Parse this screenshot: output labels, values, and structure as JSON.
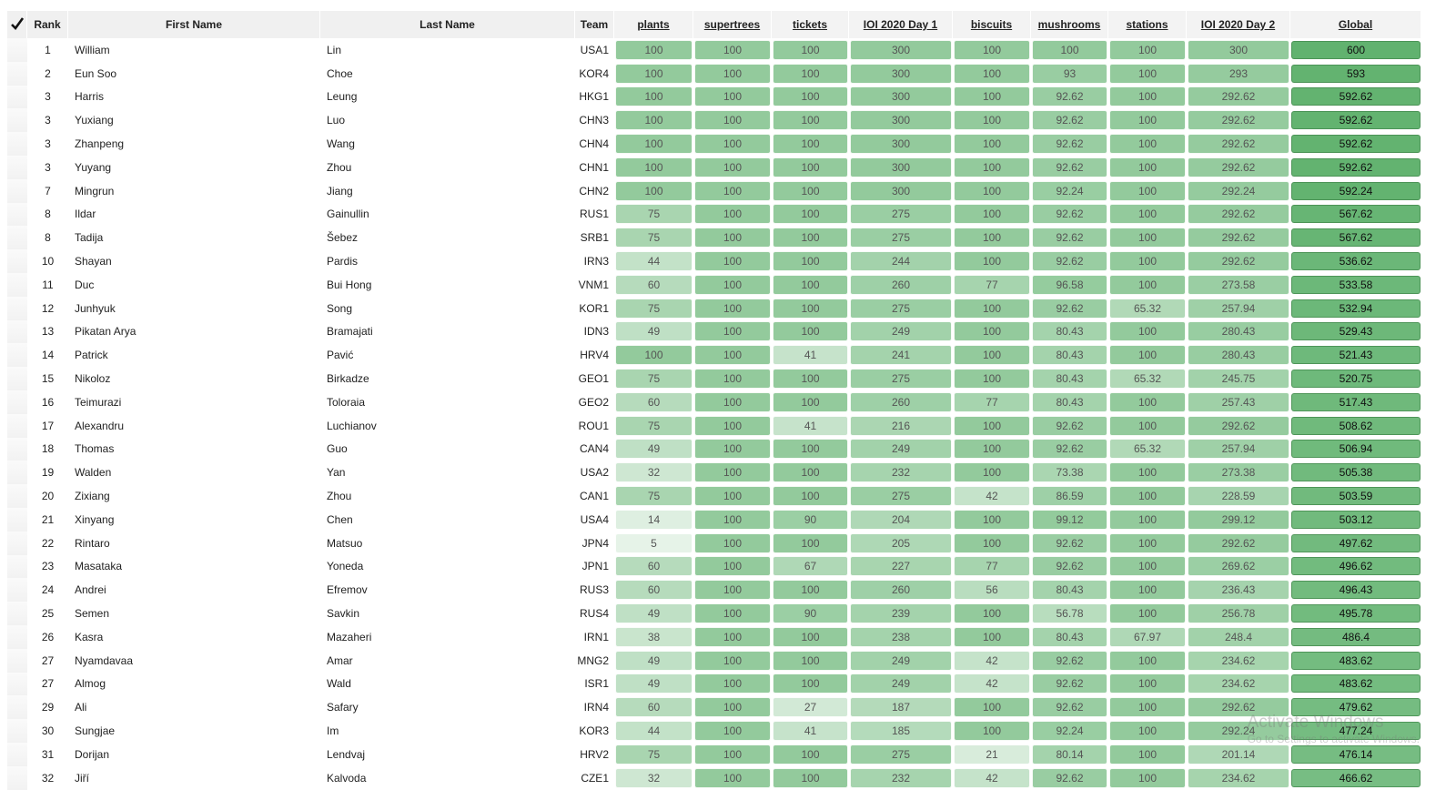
{
  "table": {
    "header": [
      "Rank",
      "First Name",
      "Last Name",
      "Team",
      "plants",
      "supertrees",
      "tickets",
      "IOI 2020 Day 1",
      "biscuits",
      "mushrooms",
      "stations",
      "IOI 2020 Day 2",
      "Global"
    ],
    "rows": [
      [
        1,
        "William",
        "Lin",
        "USA1",
        100,
        100,
        100,
        300,
        100,
        100,
        100,
        300,
        600
      ],
      [
        2,
        "Eun Soo",
        "Choe",
        "KOR4",
        100,
        100,
        100,
        300,
        100,
        93,
        100,
        293,
        593
      ],
      [
        3,
        "Harris",
        "Leung",
        "HKG1",
        100,
        100,
        100,
        300,
        100,
        92.62,
        100,
        292.62,
        592.62
      ],
      [
        3,
        "Yuxiang",
        "Luo",
        "CHN3",
        100,
        100,
        100,
        300,
        100,
        92.62,
        100,
        292.62,
        592.62
      ],
      [
        3,
        "Zhanpeng",
        "Wang",
        "CHN4",
        100,
        100,
        100,
        300,
        100,
        92.62,
        100,
        292.62,
        592.62
      ],
      [
        3,
        "Yuyang",
        "Zhou",
        "CHN1",
        100,
        100,
        100,
        300,
        100,
        92.62,
        100,
        292.62,
        592.62
      ],
      [
        7,
        "Mingrun",
        "Jiang",
        "CHN2",
        100,
        100,
        100,
        300,
        100,
        92.24,
        100,
        292.24,
        592.24
      ],
      [
        8,
        "Ildar",
        "Gainullin",
        "RUS1",
        75,
        100,
        100,
        275,
        100,
        92.62,
        100,
        292.62,
        567.62
      ],
      [
        8,
        "Tadija",
        "Šebez",
        "SRB1",
        75,
        100,
        100,
        275,
        100,
        92.62,
        100,
        292.62,
        567.62
      ],
      [
        10,
        "Shayan",
        "Pardis",
        "IRN3",
        44,
        100,
        100,
        244,
        100,
        92.62,
        100,
        292.62,
        536.62
      ],
      [
        11,
        "Duc",
        "Bui Hong",
        "VNM1",
        60,
        100,
        100,
        260,
        77,
        96.58,
        100,
        273.58,
        533.58
      ],
      [
        12,
        "Junhyuk",
        "Song",
        "KOR1",
        75,
        100,
        100,
        275,
        100,
        92.62,
        65.32,
        257.94,
        532.94
      ],
      [
        13,
        "Pikatan Arya",
        "Bramajati",
        "IDN3",
        49,
        100,
        100,
        249,
        100,
        80.43,
        100,
        280.43,
        529.43
      ],
      [
        14,
        "Patrick",
        "Pavić",
        "HRV4",
        100,
        100,
        41,
        241,
        100,
        80.43,
        100,
        280.43,
        521.43
      ],
      [
        15,
        "Nikoloz",
        "Birkadze",
        "GEO1",
        75,
        100,
        100,
        275,
        100,
        80.43,
        65.32,
        245.75,
        520.75
      ],
      [
        16,
        "Teimurazi",
        "Toloraia",
        "GEO2",
        60,
        100,
        100,
        260,
        77,
        80.43,
        100,
        257.43,
        517.43
      ],
      [
        17,
        "Alexandru",
        "Luchianov",
        "ROU1",
        75,
        100,
        41,
        216,
        100,
        92.62,
        100,
        292.62,
        508.62
      ],
      [
        18,
        "Thomas",
        "Guo",
        "CAN4",
        49,
        100,
        100,
        249,
        100,
        92.62,
        65.32,
        257.94,
        506.94
      ],
      [
        19,
        "Walden",
        "Yan",
        "USA2",
        32,
        100,
        100,
        232,
        100,
        73.38,
        100,
        273.38,
        505.38
      ],
      [
        20,
        "Zixiang",
        "Zhou",
        "CAN1",
        75,
        100,
        100,
        275,
        42,
        86.59,
        100,
        228.59,
        503.59
      ],
      [
        21,
        "Xinyang",
        "Chen",
        "USA4",
        14,
        100,
        90,
        204,
        100,
        99.12,
        100,
        299.12,
        503.12
      ],
      [
        22,
        "Rintaro",
        "Matsuo",
        "JPN4",
        5,
        100,
        100,
        205,
        100,
        92.62,
        100,
        292.62,
        497.62
      ],
      [
        23,
        "Masataka",
        "Yoneda",
        "JPN1",
        60,
        100,
        67,
        227,
        77,
        92.62,
        100,
        269.62,
        496.62
      ],
      [
        24,
        "Andrei",
        "Efremov",
        "RUS3",
        60,
        100,
        100,
        260,
        56,
        80.43,
        100,
        236.43,
        496.43
      ],
      [
        25,
        "Semen",
        "Savkin",
        "RUS4",
        49,
        100,
        90,
        239,
        100,
        56.78,
        100,
        256.78,
        495.78
      ],
      [
        26,
        "Kasra",
        "Mazaheri",
        "IRN1",
        38,
        100,
        100,
        238,
        100,
        80.43,
        67.97,
        248.4,
        486.4
      ],
      [
        27,
        "Nyamdavaa",
        "Amar",
        "MNG2",
        49,
        100,
        100,
        249,
        42,
        92.62,
        100,
        234.62,
        483.62
      ],
      [
        27,
        "Almog",
        "Wald",
        "ISR1",
        49,
        100,
        100,
        249,
        42,
        92.62,
        100,
        234.62,
        483.62
      ],
      [
        29,
        "Ali",
        "Safary",
        "IRN4",
        60,
        100,
        27,
        187,
        100,
        92.62,
        100,
        292.62,
        479.62
      ],
      [
        30,
        "Sungjae",
        "Im",
        "KOR3",
        44,
        100,
        41,
        185,
        100,
        92.24,
        100,
        292.24,
        477.24
      ],
      [
        31,
        "Dorijan",
        "Lendvaj",
        "HRV2",
        75,
        100,
        100,
        275,
        21,
        80.14,
        100,
        201.14,
        476.14
      ],
      [
        32,
        "Jiří",
        "Kalvoda",
        "CZE1",
        32,
        100,
        100,
        232,
        42,
        92.62,
        100,
        234.62,
        466.62
      ]
    ]
  },
  "watermark": {
    "title": "Activate Windows",
    "subtitle": "Go to Settings to activate Windows."
  }
}
